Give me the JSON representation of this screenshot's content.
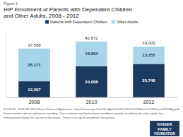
{
  "chart_data": {
    "type": "bar",
    "stacked": true,
    "data_labels": true,
    "title": "HIP Enrollment of Parents with Dependent Children",
    "subtitle": "and Other Adults, 2008 - 2012",
    "categories": [
      "2008",
      "2010",
      "2012"
    ],
    "series": [
      {
        "name": "Parents with Dependent Children",
        "color": "#1c3a5e",
        "values": [
          12397,
          24008,
          25746
        ],
        "value_labels": [
          "12,397",
          "24,008",
          "25,746"
        ]
      },
      {
        "name": "Other Adults",
        "color": "#a8d4ea",
        "values": [
          25171,
          18864,
          13255
        ],
        "value_labels": [
          "25,171",
          "18,864",
          "13,255"
        ]
      }
    ],
    "totals": {
      "values": [
        37568,
        42872,
        39005
      ],
      "value_labels": [
        "37,568",
        "42,872",
        "39,005"
      ]
    },
    "ylim": [
      0,
      52000
    ],
    "tick_labels": "x",
    "grid": false,
    "legend": "top",
    "annotations": [
      "Figure 1",
      "SOURCE:  2013 HIP 1115 Waiver Renewal Application.  http://www.in.gov/fssa/files/April%201%201115%20Waiver%20Renewal%20App.pdf",
      "Some numbers do not add due to rounding.  Due to attrition and limited open enrollment periods, enrollment for other adults has",
      "remained well below the cap set in the waiver.  There is no cap on enrollment for parents.",
      "KAISER",
      "FAMILY",
      "FOUNDATION"
    ]
  }
}
